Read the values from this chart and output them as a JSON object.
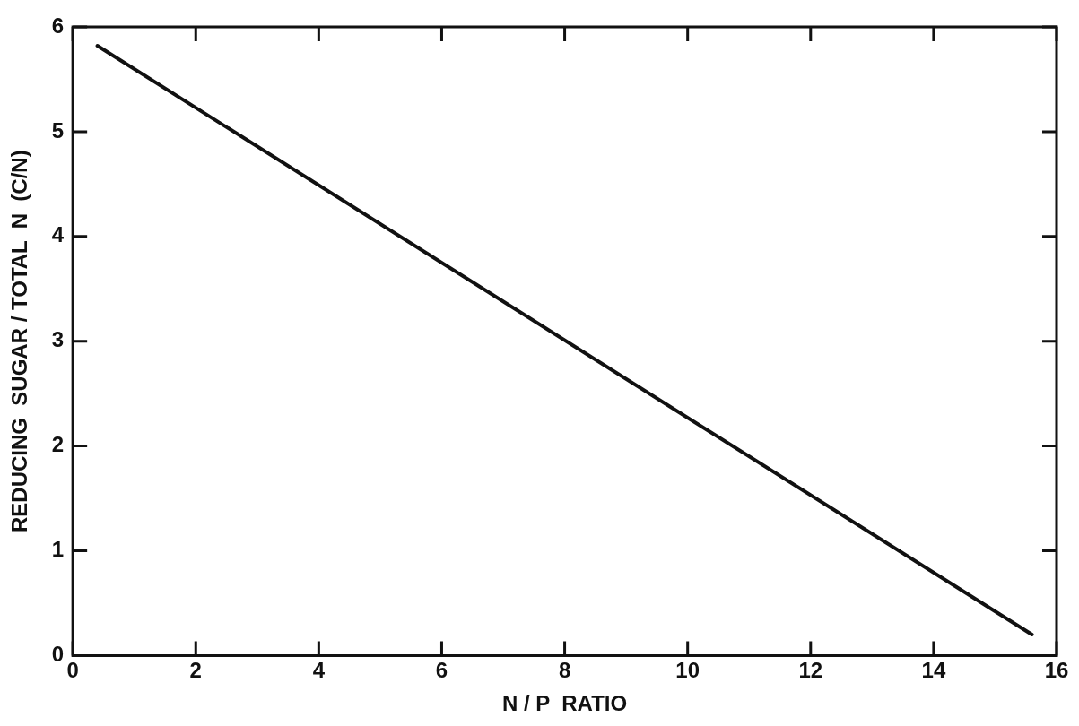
{
  "chart_data": {
    "type": "line",
    "xlabel": "N / P  RATIO",
    "ylabel": "REDUCING  SUGAR / TOTAL  N  (C/N)",
    "x": [
      0.4,
      15.6
    ],
    "values": [
      5.82,
      0.2
    ],
    "color": "#111111",
    "xlim": [
      0,
      16
    ],
    "xticks": [
      0,
      2,
      4,
      6,
      8,
      10,
      12,
      14,
      16
    ],
    "ylim": [
      0,
      6
    ],
    "yticks": [
      0,
      1,
      2,
      3,
      4,
      5,
      6
    ],
    "grid": false,
    "legend": false,
    "marker": "none",
    "line_style": "solid"
  }
}
